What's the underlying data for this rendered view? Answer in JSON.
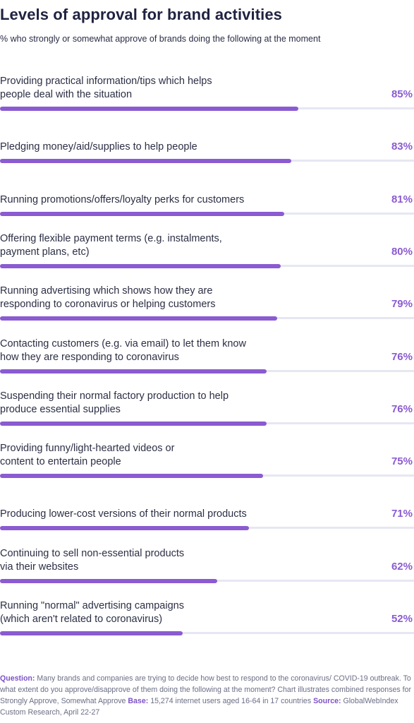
{
  "title": "Levels of approval for brand activities",
  "subtitle": "% who strongly or somewhat approve of brands doing the following at the moment",
  "colors": {
    "bar": "#8b5bd1",
    "track": "#e6e7f2",
    "title": "#1f2240"
  },
  "chart_data": {
    "type": "bar",
    "orientation": "horizontal",
    "title": "Levels of approval for brand activities",
    "subtitle": "% who strongly or somewhat approve of brands doing the following at the moment",
    "xlim": [
      0,
      100
    ],
    "categories": [
      "Providing practical information/tips which helps\npeople deal with the situation",
      "Pledging money/aid/supplies to help people",
      "Running promotions/offers/loyalty perks for customers",
      "Offering flexible payment terms (e.g. instalments,\npayment plans, etc)",
      "Running advertising which shows how they are\nresponding to coronavirus or helping customers",
      "Contacting customers (e.g. via email) to let them know\nhow they are responding to coronavirus",
      "Suspending their normal factory production to help\nproduce essential supplies",
      "Providing funny/light-hearted videos or\ncontent to entertain people",
      "Producing lower-cost versions of their normal products",
      "Continuing to sell non-essential products\nvia their websites",
      "Running \"normal\" advertising campaigns\n(which aren't related to coronavirus)"
    ],
    "values": [
      85,
      83,
      81,
      80,
      79,
      76,
      76,
      75,
      71,
      62,
      52
    ],
    "value_labels": [
      "85%",
      "83%",
      "81%",
      "80%",
      "79%",
      "76%",
      "76%",
      "75%",
      "71%",
      "62%",
      "52%"
    ],
    "grid": false,
    "legend": "none"
  },
  "footnote": {
    "question_label": "Question:",
    "question_text": " Many brands and companies are trying to decide how best to respond to the coronavirus/ COVID-19 outbreak. To what extent do you approve/disapprove of them doing the following at the moment? Chart illustrates combined responses for Strongly Approve, Somewhat Approve ",
    "base_label": "Base:",
    "base_text": " 15,274 internet users aged 16-64 in 17 countries ",
    "source_label": "Source:",
    "source_text": " GlobalWebIndex Custom Research, April 22-27"
  }
}
